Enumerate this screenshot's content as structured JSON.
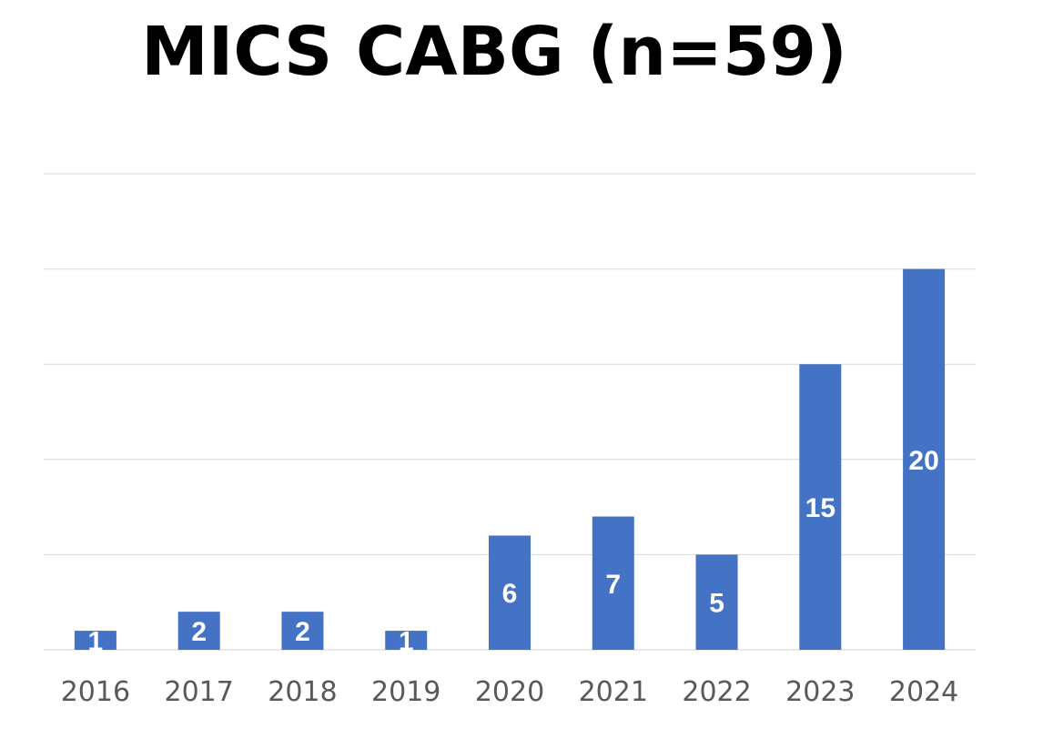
{
  "chart_data": {
    "type": "bar",
    "title": "MICS CABG (n=59)",
    "categories": [
      "2016",
      "2017",
      "2018",
      "2019",
      "2020",
      "2021",
      "2022",
      "2023",
      "2024"
    ],
    "values": [
      1,
      2,
      2,
      1,
      6,
      7,
      5,
      15,
      20
    ],
    "ylim": [
      0,
      25
    ],
    "yticks_shown": false,
    "grid": true,
    "legend": "none",
    "bar_color": "#4472c4"
  }
}
